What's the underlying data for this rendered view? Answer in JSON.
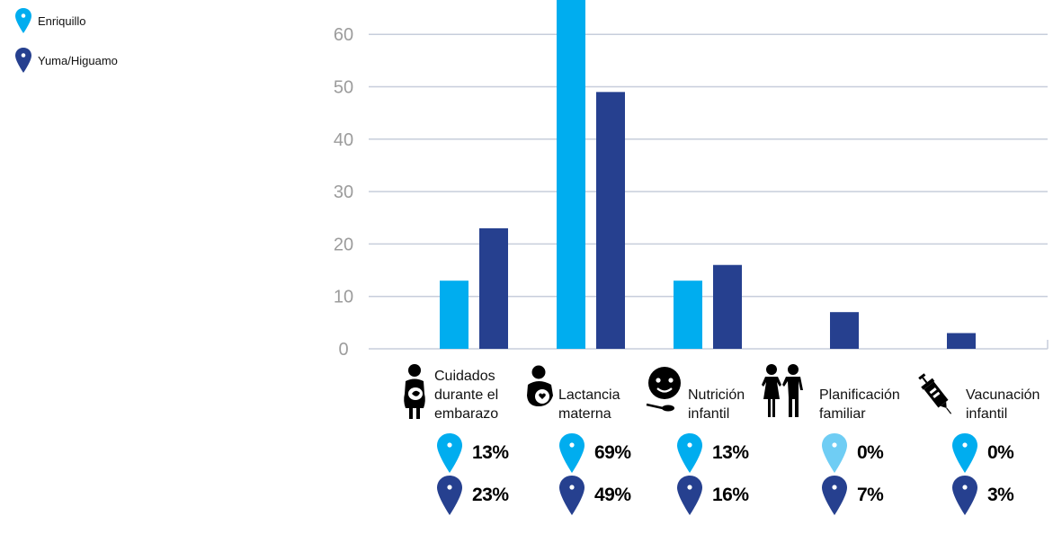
{
  "legend": [
    {
      "name": "Enriquillo",
      "color": "#00adef"
    },
    {
      "name": "Yuma/Higuamo",
      "color": "#26408f"
    }
  ],
  "categories": [
    {
      "label_lines": [
        "Cuidados",
        "durante el",
        "embarazo"
      ],
      "icon": "pregnant-woman-icon",
      "pct_enriquillo": "13%",
      "pct_yuma": "23%"
    },
    {
      "label_lines": [
        "Lactancia",
        "materna"
      ],
      "icon": "breastfeeding-icon",
      "pct_enriquillo": "69%",
      "pct_yuma": "49%"
    },
    {
      "label_lines": [
        "Nutrición",
        "infantil"
      ],
      "icon": "child-feeding-icon",
      "pct_enriquillo": "13%",
      "pct_yuma": "16%"
    },
    {
      "label_lines": [
        "Planificación",
        "familiar"
      ],
      "icon": "couple-icon",
      "pct_enriquillo": "0%",
      "pct_yuma": "7%"
    },
    {
      "label_lines": [
        "Vacunación",
        "infantil"
      ],
      "icon": "syringe-icon",
      "pct_enriquillo": "0%",
      "pct_yuma": "3%"
    }
  ],
  "chart_data": {
    "type": "bar",
    "categories": [
      "Cuidados durante el embarazo",
      "Lactancia materna",
      "Nutrición infantil",
      "Planificación familiar",
      "Vacunación infantil"
    ],
    "series": [
      {
        "name": "Enriquillo",
        "values": [
          13,
          69,
          13,
          0,
          0
        ],
        "color": "#00adef"
      },
      {
        "name": "Yuma/Higuamo",
        "values": [
          23,
          49,
          16,
          7,
          3
        ],
        "color": "#26408f"
      }
    ],
    "yticks": [
      0,
      10,
      20,
      30,
      40,
      50,
      60
    ],
    "ylim": [
      0,
      66
    ],
    "grid": true,
    "legend_position": "top-left"
  },
  "colors": {
    "grid": "#c7cedb",
    "tick": "#9c9c9c",
    "zero_pct_marker": "#6fcdf4"
  }
}
